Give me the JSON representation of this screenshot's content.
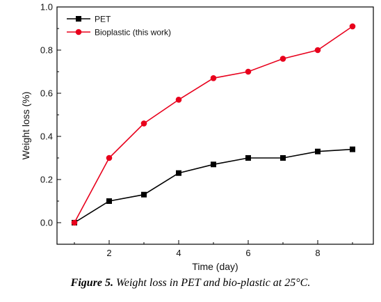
{
  "chart_data": {
    "type": "line",
    "xlabel": "Time (day)",
    "ylabel": "Weight loss (%)",
    "xlim": [
      0.5,
      9.6
    ],
    "ylim": [
      -0.1,
      1.0
    ],
    "xticks": [
      2,
      4,
      6,
      8
    ],
    "yticks": [
      0.0,
      0.2,
      0.4,
      0.6,
      0.8,
      1.0
    ],
    "ytick_labels": [
      "0.0",
      "0.2",
      "0.4",
      "0.6",
      "0.8",
      "1.0"
    ],
    "legend_position": "top-left",
    "grid": false,
    "series": [
      {
        "name": "PET",
        "color": "#000000",
        "marker": "square",
        "x": [
          1,
          2,
          3,
          4,
          5,
          6,
          7,
          8,
          9
        ],
        "y": [
          0.0,
          0.1,
          0.13,
          0.23,
          0.27,
          0.3,
          0.3,
          0.33,
          0.34
        ]
      },
      {
        "name": "Bioplastic (this work)",
        "color": "#e8001c",
        "marker": "circle",
        "x": [
          1,
          2,
          3,
          4,
          5,
          6,
          7,
          8,
          9
        ],
        "y": [
          0.0,
          0.3,
          0.46,
          0.57,
          0.67,
          0.7,
          0.76,
          0.8,
          0.91
        ]
      }
    ]
  },
  "caption": {
    "lead": "Figure 5.",
    "text": "Weight loss in PET and bio-plastic at 25°C."
  }
}
